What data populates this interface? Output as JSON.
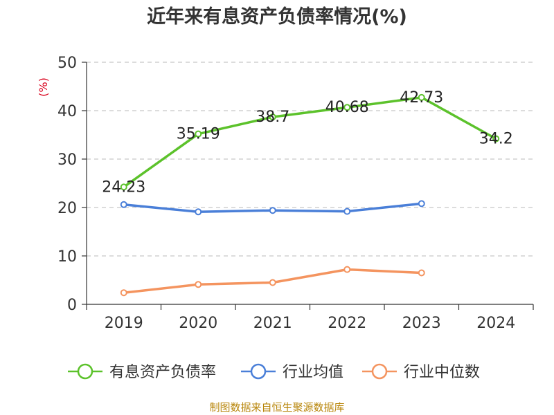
{
  "source_text": "制图数据来自恒生聚源数据库",
  "chart_data": {
    "type": "line",
    "title": "近年来有息资产负债率情况(%)",
    "ylabel": "(%)",
    "xlabel": "",
    "categories": [
      "2019",
      "2020",
      "2021",
      "2022",
      "2023",
      "2024"
    ],
    "ylim": [
      0,
      50
    ],
    "yticks": [
      0,
      10,
      20,
      30,
      40,
      50
    ],
    "grid": true,
    "legend_position": "bottom",
    "series": [
      {
        "name": "有息资产负债率",
        "color": "#5cc22b",
        "values": [
          24.23,
          35.19,
          38.7,
          40.68,
          42.73,
          34.2
        ],
        "show_labels": true
      },
      {
        "name": "行业均值",
        "color": "#4a7fd8",
        "values": [
          20.6,
          19.1,
          19.4,
          19.2,
          20.8,
          null
        ],
        "show_labels": false
      },
      {
        "name": "行业中位数",
        "color": "#f4945f",
        "values": [
          2.4,
          4.1,
          4.5,
          7.2,
          6.5,
          null
        ],
        "show_labels": false
      }
    ]
  }
}
